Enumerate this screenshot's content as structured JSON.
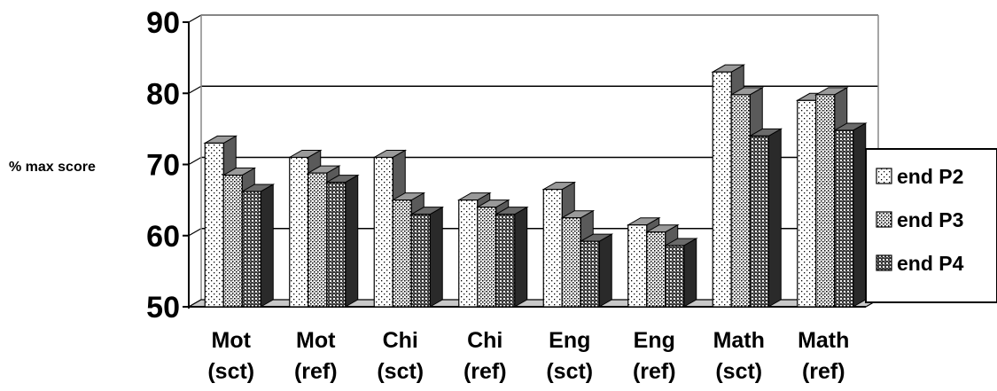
{
  "chart_data": {
    "type": "bar",
    "style": "3d-clustered-column",
    "ylabel": "% max score",
    "xlabel": "",
    "ylim": [
      50,
      90
    ],
    "yticks": [
      50,
      60,
      70,
      80,
      90
    ],
    "grid": true,
    "legend_position": "right",
    "categories": [
      [
        "Mot",
        "(sct)"
      ],
      [
        "Mot",
        "(ref)"
      ],
      [
        "Chi",
        "(sct)"
      ],
      [
        "Chi",
        "(ref)"
      ],
      [
        "Eng",
        "(sct)"
      ],
      [
        "Eng",
        "(ref)"
      ],
      [
        "Math",
        "(sct)"
      ],
      [
        "Math",
        "(ref)"
      ]
    ],
    "series": [
      {
        "name": "end P2",
        "pattern": "sparse-dots",
        "values": [
          73.0,
          71.0,
          71.0,
          65.0,
          66.5,
          61.5,
          83.0,
          79.0
        ]
      },
      {
        "name": "end P3",
        "pattern": "dense-dots",
        "values": [
          68.5,
          68.8,
          65.0,
          64.0,
          62.5,
          60.5,
          79.8,
          79.8
        ]
      },
      {
        "name": "end P4",
        "pattern": "dark-checker",
        "values": [
          66.2,
          67.5,
          63.0,
          63.0,
          59.2,
          58.6,
          74.0,
          74.8
        ]
      }
    ]
  }
}
